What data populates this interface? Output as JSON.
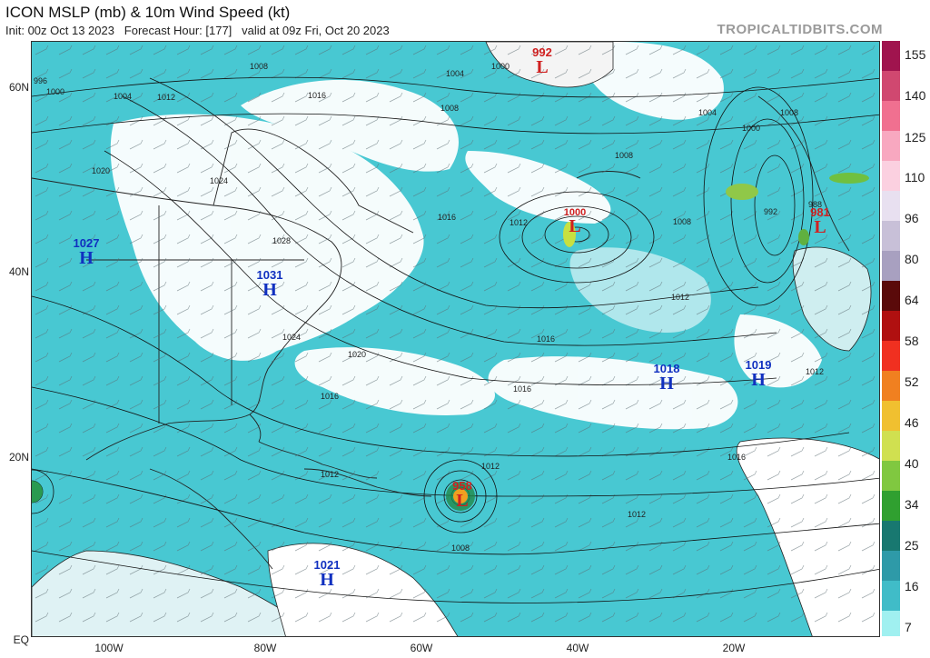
{
  "header": {
    "title": "ICON MSLP (mb) & 10m Wind Speed (kt)",
    "subtitle": "Init: 00z Oct 13 2023   Forecast Hour: [177]   valid at 09z Fri, Oct 20 2023",
    "brand": "TROPICALTIDBITS.COM"
  },
  "axes": {
    "lat_labels": [
      "60N",
      "40N",
      "20N",
      "EQ"
    ],
    "lon_labels": [
      "100W",
      "80W",
      "60W",
      "40W",
      "20W"
    ]
  },
  "colorbar": {
    "labels": [
      "155",
      "140",
      "125",
      "110",
      "96",
      "80",
      "64",
      "58",
      "52",
      "46",
      "40",
      "34",
      "25",
      "16",
      "7"
    ],
    "colors": [
      "#a0144e",
      "#d04870",
      "#f07090",
      "#f8a8c0",
      "#fbd0e0",
      "#e8e0f0",
      "#c8c0d8",
      "#5a0a0a",
      "#b01010",
      "#f03020",
      "#f08020",
      "#f0c030",
      "#d0e050",
      "#80c840",
      "#30a030",
      "#187870",
      "#2e9aa8",
      "#40bcc8",
      "#60d8e0",
      "#a0f0f0"
    ],
    "accent": "#38c8d0"
  },
  "pressure_centers": [
    {
      "type": "H",
      "value": "1027",
      "color": "#1030c0"
    },
    {
      "type": "H",
      "value": "1031",
      "color": "#1030c0"
    },
    {
      "type": "H",
      "value": "1018",
      "color": "#1030c0"
    },
    {
      "type": "H",
      "value": "1019",
      "color": "#1030c0"
    },
    {
      "type": "H",
      "value": "1021",
      "color": "#1030c0"
    },
    {
      "type": "L",
      "value": "992",
      "color": "#d02020"
    },
    {
      "type": "L",
      "value": "1000",
      "color": "#d02020"
    },
    {
      "type": "L",
      "value": "981",
      "color": "#d02020"
    },
    {
      "type": "L",
      "value": "958",
      "color": "#d02020"
    }
  ],
  "isobar_labels": [
    "996",
    "1000",
    "1004",
    "1008",
    "1012",
    "1016",
    "1020",
    "1024",
    "1028",
    "1000",
    "1004",
    "1008",
    "1012",
    "1016",
    "1016",
    "1012",
    "1008",
    "1012",
    "1016",
    "1012",
    "1008",
    "1012",
    "1016",
    "1020",
    "1024",
    "1004",
    "1008",
    "992",
    "988",
    "1000",
    "1008",
    "1012",
    "1016"
  ]
}
